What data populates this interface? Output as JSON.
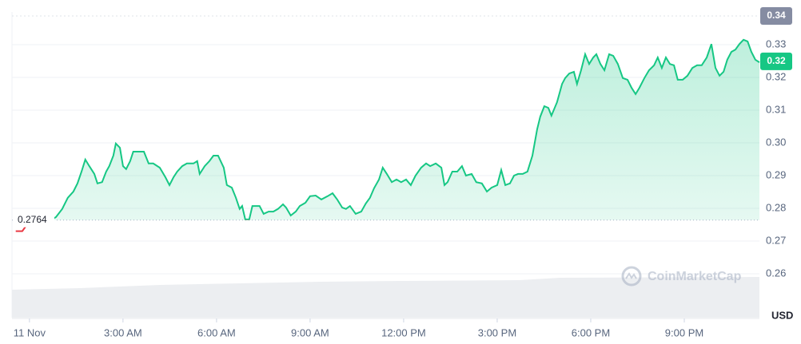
{
  "chart_data": {
    "type": "line",
    "color": "#16c784",
    "below_color": "#ea3943",
    "x": [
      -0.44,
      -0.23,
      -0.05,
      0.21,
      0.59,
      0.85,
      1.05,
      1.23,
      1.41,
      1.54,
      1.67,
      1.79,
      1.92,
      2.08,
      2.18,
      2.33,
      2.46,
      2.56,
      2.69,
      2.77,
      2.9,
      3.0,
      3.1,
      3.23,
      3.33,
      3.54,
      3.67,
      3.82,
      3.97,
      4.18,
      4.36,
      4.49,
      4.62,
      4.74,
      4.9,
      5.05,
      5.26,
      5.38,
      5.46,
      5.62,
      5.77,
      5.9,
      6.05,
      6.23,
      6.33,
      6.49,
      6.62,
      6.74,
      6.82,
      6.92,
      7.05,
      7.15,
      7.38,
      7.51,
      7.67,
      7.82,
      7.97,
      8.13,
      8.23,
      8.38,
      8.54,
      8.67,
      8.85,
      9.0,
      9.18,
      9.36,
      9.56,
      9.72,
      9.87,
      10.03,
      10.15,
      10.28,
      10.46,
      10.64,
      10.79,
      10.92,
      11.05,
      11.21,
      11.33,
      11.46,
      11.62,
      11.77,
      11.92,
      12.08,
      12.23,
      12.38,
      12.56,
      12.72,
      12.85,
      13.03,
      13.21,
      13.31,
      13.41,
      13.56,
      13.72,
      13.87,
      14.0,
      14.18,
      14.33,
      14.51,
      14.67,
      14.82,
      15.0,
      15.13,
      15.26,
      15.41,
      15.54,
      15.67,
      15.82,
      15.97,
      16.13,
      16.28,
      16.38,
      16.51,
      16.64,
      16.74,
      16.92,
      17.08,
      17.18,
      17.31,
      17.46,
      17.56,
      17.69,
      17.82,
      17.95,
      18.08,
      18.18,
      18.31,
      18.44,
      18.59,
      18.72,
      18.87,
      19.03,
      19.18,
      19.31,
      19.44,
      19.56,
      19.72,
      19.87,
      20.03,
      20.15,
      20.28,
      20.41,
      20.54,
      20.67,
      20.79,
      20.95,
      21.1,
      21.26,
      21.41,
      21.56,
      21.72,
      21.87,
      22.0,
      22.13,
      22.26,
      22.38,
      22.51,
      22.64,
      22.77,
      22.9,
      23.03,
      23.15,
      23.28,
      23.41
    ],
    "values": [
      0.273,
      0.273,
      0.2754,
      0.2759,
      0.2759,
      0.2773,
      0.2798,
      0.2832,
      0.2851,
      0.2876,
      0.2912,
      0.2949,
      0.2929,
      0.2905,
      0.2876,
      0.288,
      0.2912,
      0.2929,
      0.2961,
      0.2998,
      0.2985,
      0.2929,
      0.292,
      0.2944,
      0.2973,
      0.2973,
      0.2973,
      0.2937,
      0.2937,
      0.2924,
      0.2895,
      0.2871,
      0.2895,
      0.2912,
      0.2929,
      0.2937,
      0.2937,
      0.2944,
      0.2905,
      0.2929,
      0.2944,
      0.2961,
      0.2961,
      0.2924,
      0.2871,
      0.2863,
      0.2832,
      0.2798,
      0.2807,
      0.2766,
      0.2766,
      0.2807,
      0.2807,
      0.2783,
      0.279,
      0.279,
      0.2798,
      0.2812,
      0.2802,
      0.2778,
      0.279,
      0.2807,
      0.2817,
      0.2837,
      0.2839,
      0.2827,
      0.2837,
      0.2846,
      0.2827,
      0.2802,
      0.2798,
      0.2807,
      0.2783,
      0.279,
      0.2815,
      0.2832,
      0.2861,
      0.2888,
      0.2924,
      0.2905,
      0.288,
      0.2888,
      0.288,
      0.2888,
      0.2871,
      0.29,
      0.2924,
      0.2937,
      0.2929,
      0.2937,
      0.2924,
      0.2871,
      0.288,
      0.2912,
      0.2912,
      0.2929,
      0.29,
      0.2905,
      0.288,
      0.2876,
      0.2851,
      0.2863,
      0.2871,
      0.2917,
      0.2871,
      0.2876,
      0.29,
      0.2905,
      0.2905,
      0.2912,
      0.2961,
      0.3041,
      0.308,
      0.3112,
      0.3107,
      0.3083,
      0.3124,
      0.318,
      0.3198,
      0.3212,
      0.3217,
      0.318,
      0.3222,
      0.3271,
      0.3241,
      0.3261,
      0.3271,
      0.3241,
      0.3222,
      0.3271,
      0.3266,
      0.3241,
      0.3198,
      0.3193,
      0.3168,
      0.3149,
      0.3168,
      0.3198,
      0.3222,
      0.3237,
      0.3261,
      0.3229,
      0.3261,
      0.3241,
      0.3237,
      0.3193,
      0.3193,
      0.3205,
      0.3229,
      0.3237,
      0.3237,
      0.3261,
      0.3302,
      0.3229,
      0.3205,
      0.3217,
      0.3254,
      0.3278,
      0.3285,
      0.3302,
      0.3315,
      0.331,
      0.3278,
      0.3254,
      0.3246
    ],
    "xlim": [
      -0.56,
      23.41
    ],
    "xticks": [
      {
        "value": 0,
        "label": "11 Nov"
      },
      {
        "value": 3,
        "label": "3:00 AM"
      },
      {
        "value": 6,
        "label": "6:00 AM"
      },
      {
        "value": 9,
        "label": "9:00 AM"
      },
      {
        "value": 12,
        "label": "12:00 PM"
      },
      {
        "value": 15,
        "label": "3:00 PM"
      },
      {
        "value": 18,
        "label": "6:00 PM"
      },
      {
        "value": 21,
        "label": "9:00 PM"
      }
    ],
    "ylim": [
      0.2473,
      0.34
    ],
    "yticks": [
      0.26,
      0.27,
      0.28,
      0.29,
      {
        "value": 0.3,
        "label": "0.30"
      },
      0.31,
      0.32,
      0.33
    ],
    "ylabel": "USD",
    "grid": true,
    "baseline": {
      "value": 0.2764,
      "label": "0.2764"
    },
    "price_badges": [
      {
        "value": 0.34,
        "label": "0.34",
        "color": "#858ca2"
      },
      {
        "value": 0.3249,
        "label": "0.32",
        "color": "#16c784"
      }
    ],
    "watermark": "CoinMarketCap"
  }
}
